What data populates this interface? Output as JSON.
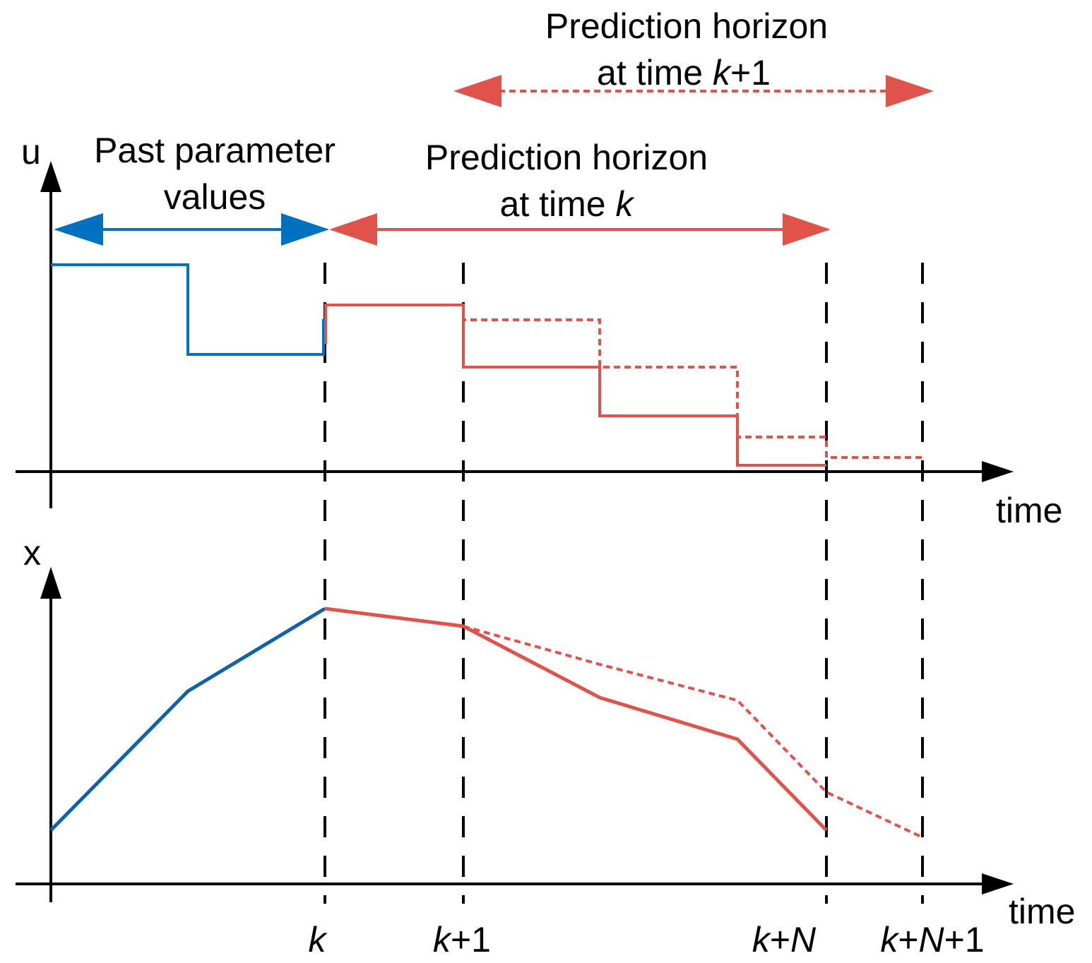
{
  "labels": {
    "u_axis": "u",
    "x_axis": "x",
    "time_top": "time",
    "time_bottom": "time",
    "past_line1": "Past parameter",
    "past_line2": "values",
    "horizon_k_line1": "Prediction horizon",
    "horizon_k_line2_prefix": "at time ",
    "horizon_k_line2_var": "k",
    "horizon_k1_line1": "Prediction horizon",
    "horizon_k1_line2_prefix": "at time ",
    "horizon_k1_line2_var": "k",
    "horizon_k1_line2_suffix": "+1"
  },
  "ticks": {
    "k": {
      "var": "k",
      "suffix": ""
    },
    "k1": {
      "var": "k",
      "suffix": "+1"
    },
    "kN": {
      "var1": "k",
      "plus": "+",
      "var2": "N"
    },
    "kN1": {
      "var1": "k",
      "plus": "+",
      "var2": "N",
      "suffix": "+1"
    }
  },
  "colors": {
    "past": "#0070C0",
    "past_state": "#0F62A8",
    "prediction": "#E0534A",
    "axis": "#000000"
  }
}
